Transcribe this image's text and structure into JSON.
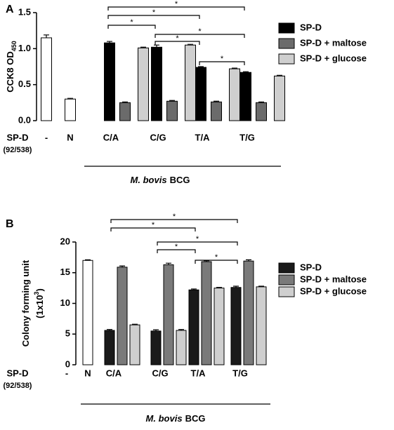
{
  "chart_data": [
    {
      "type": "bar",
      "panel": "A",
      "ylabel": [
        [
          {
            "text": "CCK8 OD"
          },
          {
            "text": "450",
            "script": "sub"
          }
        ]
      ],
      "ylim": [
        0,
        1.5
      ],
      "yticks": [
        {
          "value": 0,
          "label": "0.0"
        },
        0.5,
        {
          "value": 1,
          "label": "1.0"
        },
        1.5
      ],
      "row_label": [
        "SP-D",
        "(92/538)"
      ],
      "categories": [
        "-",
        "N",
        "C/A",
        "C/G",
        "T/A",
        "T/G"
      ],
      "group_label": [
        {
          "text": "M. bovis",
          "style": "italic"
        },
        {
          "text": "BCG"
        }
      ],
      "series": [
        {
          "color": "#ffffff",
          "values": [
            1.15,
            0.3,
            null,
            null,
            null,
            null
          ],
          "errors": [
            0.04,
            0.01,
            null,
            null,
            null,
            null
          ]
        },
        {
          "name": "SP-D",
          "color": "#000000",
          "values": [
            null,
            null,
            1.08,
            1.02,
            0.74,
            0.67
          ],
          "errors": [
            null,
            null,
            0.02,
            0.03,
            0.01,
            0.01
          ]
        },
        {
          "name": "SP-D + maltose",
          "color": "#6b6b6b",
          "values": [
            null,
            null,
            0.25,
            0.27,
            0.26,
            0.25
          ],
          "errors": [
            null,
            null,
            0.01,
            0.01,
            0.01,
            0.01
          ]
        },
        {
          "name": "SP-D + glucose",
          "color": "#cfcfcf",
          "values": [
            null,
            null,
            1.01,
            1.05,
            0.72,
            0.62
          ],
          "errors": [
            null,
            null,
            0.01,
            0.01,
            0.01,
            0.01
          ]
        }
      ],
      "annotations": [
        {
          "from": "C/A",
          "to": "T/G",
          "text": "*"
        },
        {
          "from": "C/A",
          "to": "T/A",
          "text": "*"
        },
        {
          "from": "C/A",
          "to": "C/G",
          "text": "*"
        },
        {
          "from": "C/G",
          "to": "T/G",
          "text": "*"
        },
        {
          "from": "C/G",
          "to": "T/A",
          "text": "*"
        },
        {
          "from": "T/A",
          "to": "T/G",
          "text": "*"
        }
      ]
    },
    {
      "type": "bar",
      "panel": "B",
      "ylabel": [
        [
          {
            "text": "Colony forming unit"
          }
        ],
        [
          {
            "text": "(1x10"
          },
          {
            "text": "3",
            "script": "super"
          },
          {
            "text": ")"
          }
        ]
      ],
      "ylim": [
        0,
        20
      ],
      "yticks": [
        0,
        5,
        10,
        15,
        20
      ],
      "row_label": [
        "SP-D",
        "(92/538)"
      ],
      "categories": [
        "-",
        "N",
        "C/A",
        "C/G",
        "T/A",
        "T/G"
      ],
      "group_label": [
        {
          "text": "M. bovis",
          "style": "italic"
        },
        {
          "text": "BCG"
        }
      ],
      "series": [
        {
          "color": "#ffffff",
          "values": [
            null,
            17,
            null,
            null,
            null,
            null
          ],
          "errors": [
            null,
            0.1,
            null,
            null,
            null,
            null
          ]
        },
        {
          "name": "SP-D",
          "color": "#1a1a1a",
          "values": [
            null,
            null,
            5.6,
            5.5,
            12.2,
            12.6
          ],
          "errors": [
            null,
            null,
            0.15,
            0.2,
            0.15,
            0.2
          ]
        },
        {
          "name": "SP-D + maltose",
          "color": "#7a7a7a",
          "values": [
            null,
            null,
            15.9,
            16.3,
            16.8,
            16.9
          ],
          "errors": [
            null,
            null,
            0.2,
            0.25,
            0.15,
            0.2
          ]
        },
        {
          "name": "SP-D + glucose",
          "color": "#cfcfcf",
          "values": [
            null,
            null,
            6.5,
            5.6,
            12.5,
            12.7
          ],
          "errors": [
            null,
            null,
            0.1,
            0.15,
            0.1,
            0.1
          ]
        }
      ],
      "annotations": [
        {
          "from": "C/A",
          "to": "T/G",
          "text": "*"
        },
        {
          "from": "C/A",
          "to": "T/A",
          "text": "*"
        },
        {
          "from": "C/G",
          "to": "T/G",
          "text": "*"
        },
        {
          "from": "C/G",
          "to": "T/A",
          "text": "*"
        },
        {
          "from": "T/A",
          "to": "T/G",
          "text": "*"
        }
      ]
    }
  ]
}
